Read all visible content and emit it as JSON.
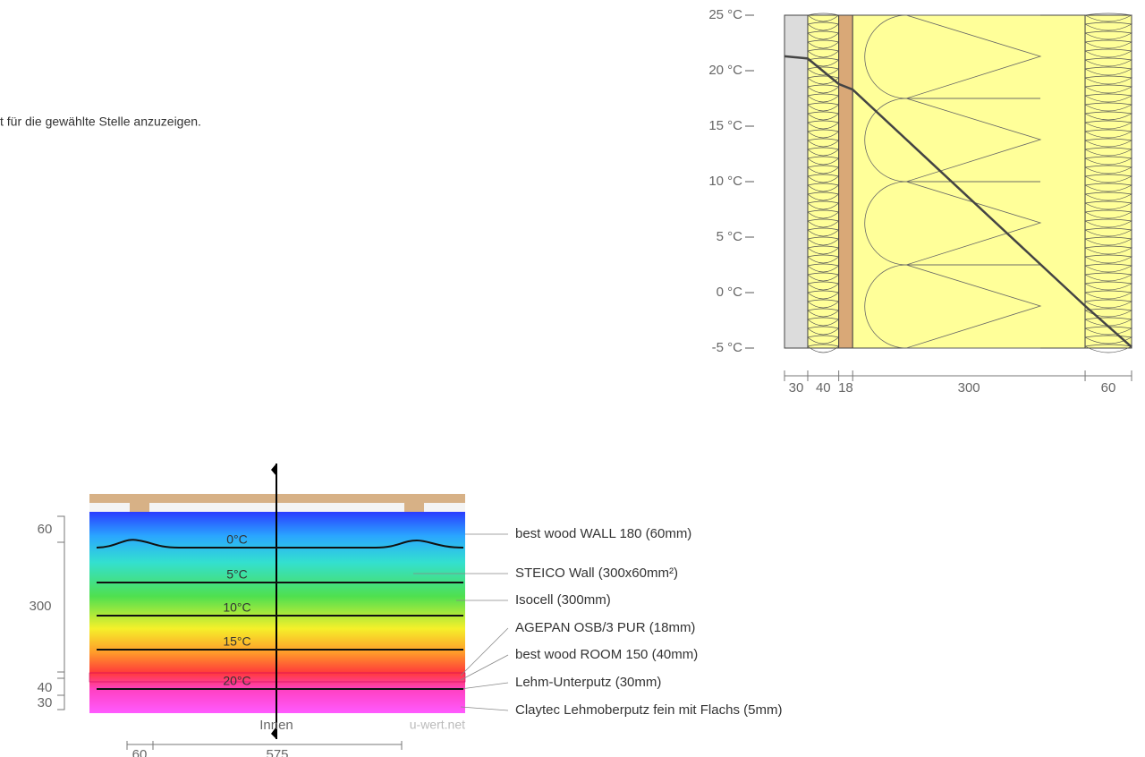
{
  "intro_text": "t für die gewählte Stelle anzuzeigen.",
  "temperature_chart": {
    "ylim": [
      -5,
      25
    ],
    "yticks": [
      {
        "value": 25,
        "label": "25 °C"
      },
      {
        "value": 20,
        "label": "20 °C"
      },
      {
        "value": 15,
        "label": "15 °C"
      },
      {
        "value": 10,
        "label": "10 °C"
      },
      {
        "value": 5,
        "label": "5 °C"
      },
      {
        "value": 0,
        "label": "0 °C"
      },
      {
        "value": -5,
        "label": "-5 °C"
      }
    ],
    "layers": [
      30,
      40,
      18,
      300,
      60
    ],
    "layer_colors": [
      "#dcdcdc",
      "#ffff99",
      "#d9a877",
      "#ffff99",
      "#ffff99"
    ],
    "temperatures": [
      21.3,
      21.1,
      18.8,
      18.3,
      -1.2,
      -4.9
    ]
  },
  "section": {
    "layer_labels": [
      "best wood WALL 180 (60mm)",
      "STEICO  Wall (300x60mm²)",
      "Isocell (300mm)",
      "AGEPAN OSB/3 PUR (18mm)",
      "best wood ROOM 150 (40mm)",
      "Lehm-Unterputz (30mm)",
      "Claytec Lehmoberputz fein mit Flachs (5mm)"
    ],
    "isotherms": [
      "0°C",
      "5°C",
      "10°C",
      "15°C",
      "20°C"
    ],
    "dims_left": [
      60,
      300,
      40,
      30
    ],
    "dims_bottom": [
      60,
      575
    ],
    "inside_label": "Innen",
    "watermark": "u-wert.net"
  }
}
